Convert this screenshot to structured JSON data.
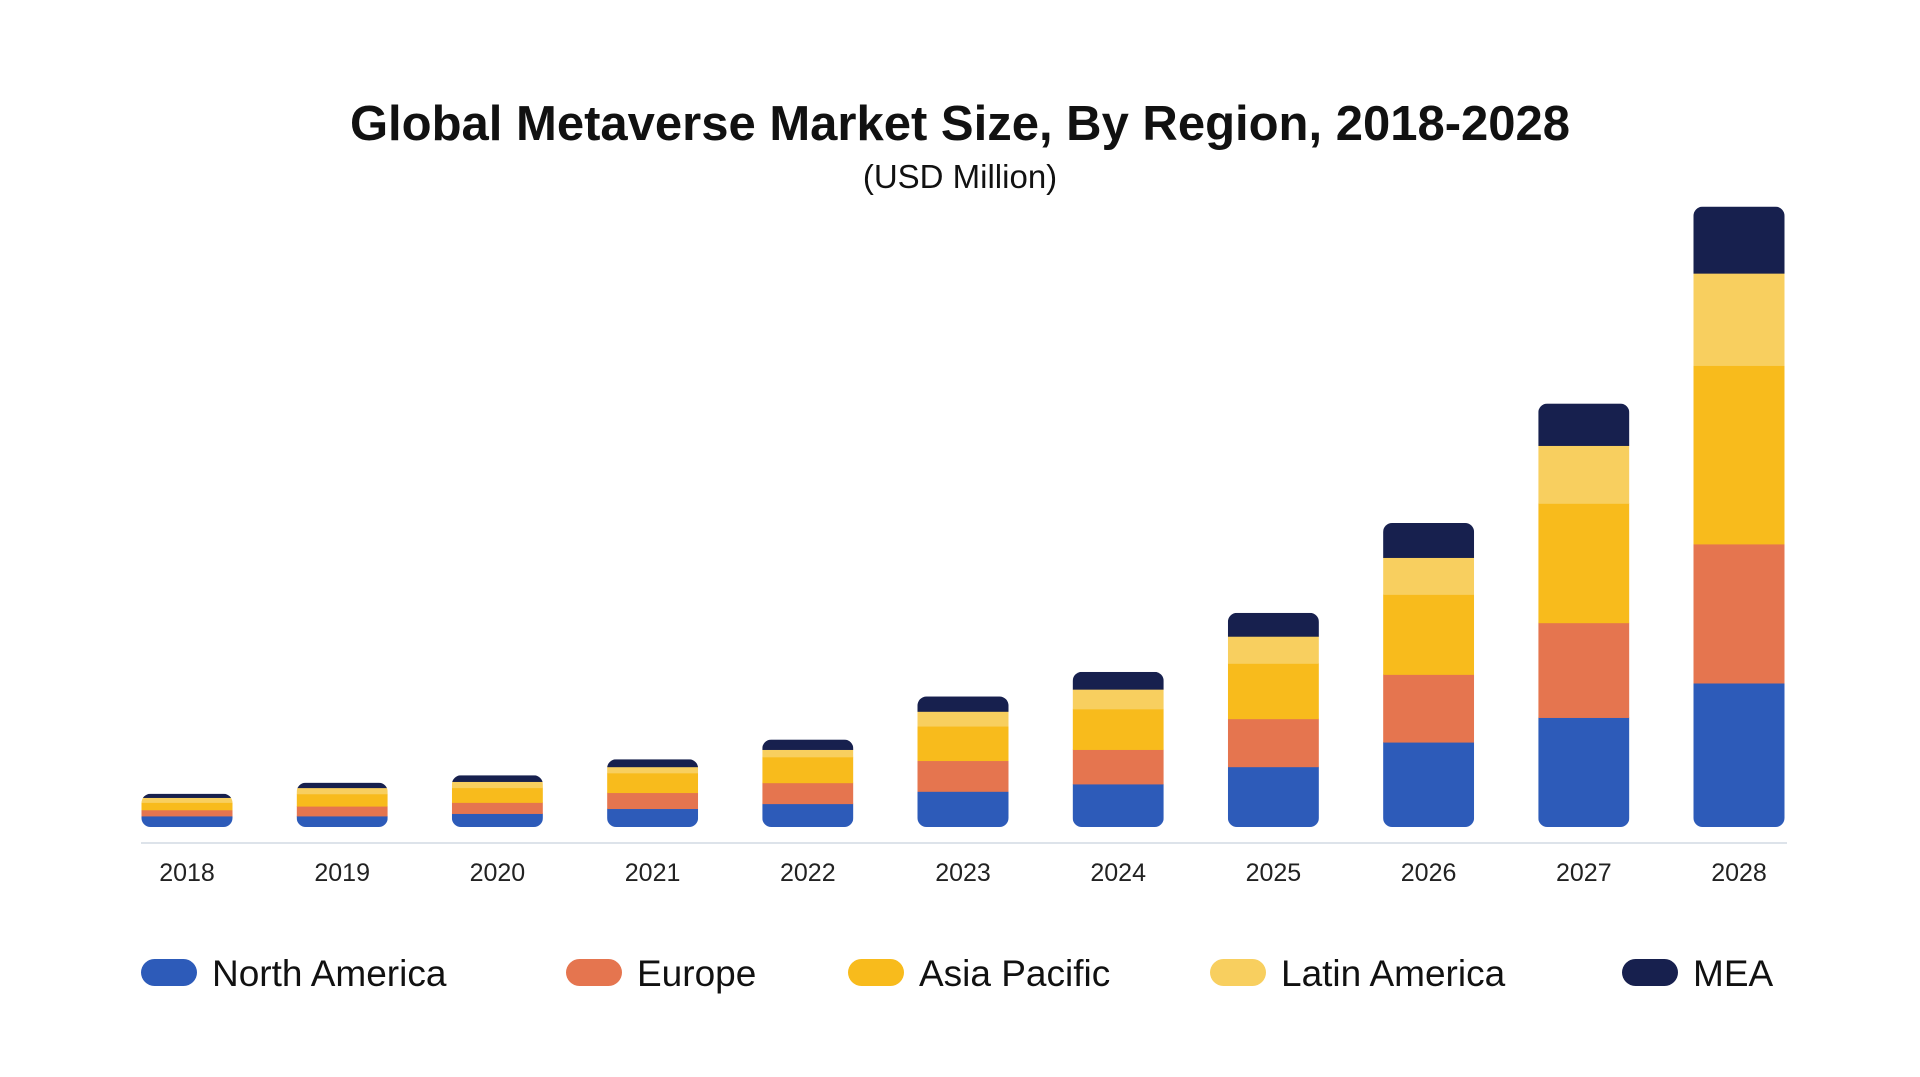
{
  "chart_data": {
    "type": "bar",
    "stacked": true,
    "title": "Global Metaverse Market Size, By Region, 2018-2028",
    "subtitle": "(USD Million)",
    "xlabel": "",
    "ylabel": "",
    "grid": false,
    "y_axis_shown": false,
    "legend_position": "bottom",
    "categories": [
      "2018",
      "2019",
      "2020",
      "2021",
      "2022",
      "2023",
      "2024",
      "2025",
      "2026",
      "2027",
      "2028"
    ],
    "series": [
      {
        "name": "North America",
        "color": "#2d5bb9",
        "values": [
          9,
          9,
          11,
          15,
          19,
          29,
          35,
          49,
          69,
          89,
          117
        ]
      },
      {
        "name": "Europe",
        "color": "#e5754f",
        "values": [
          5,
          8,
          9,
          13,
          17,
          25,
          28,
          39,
          55,
          77,
          113
        ]
      },
      {
        "name": "Asia Pacific",
        "color": "#f8bb1c",
        "values": [
          6,
          10,
          12,
          16,
          21,
          28,
          33,
          45,
          65,
          97,
          145
        ]
      },
      {
        "name": "Latin America",
        "color": "#f8cf5f",
        "values": [
          4,
          5,
          5,
          5,
          6,
          12,
          16,
          22,
          30,
          47,
          75
        ]
      },
      {
        "name": "MEA",
        "color": "#17204e",
        "values": [
          3,
          4,
          5,
          6,
          8,
          12,
          14,
          19,
          28,
          34,
          54
        ]
      }
    ],
    "ylim": [
      0,
      520
    ]
  }
}
